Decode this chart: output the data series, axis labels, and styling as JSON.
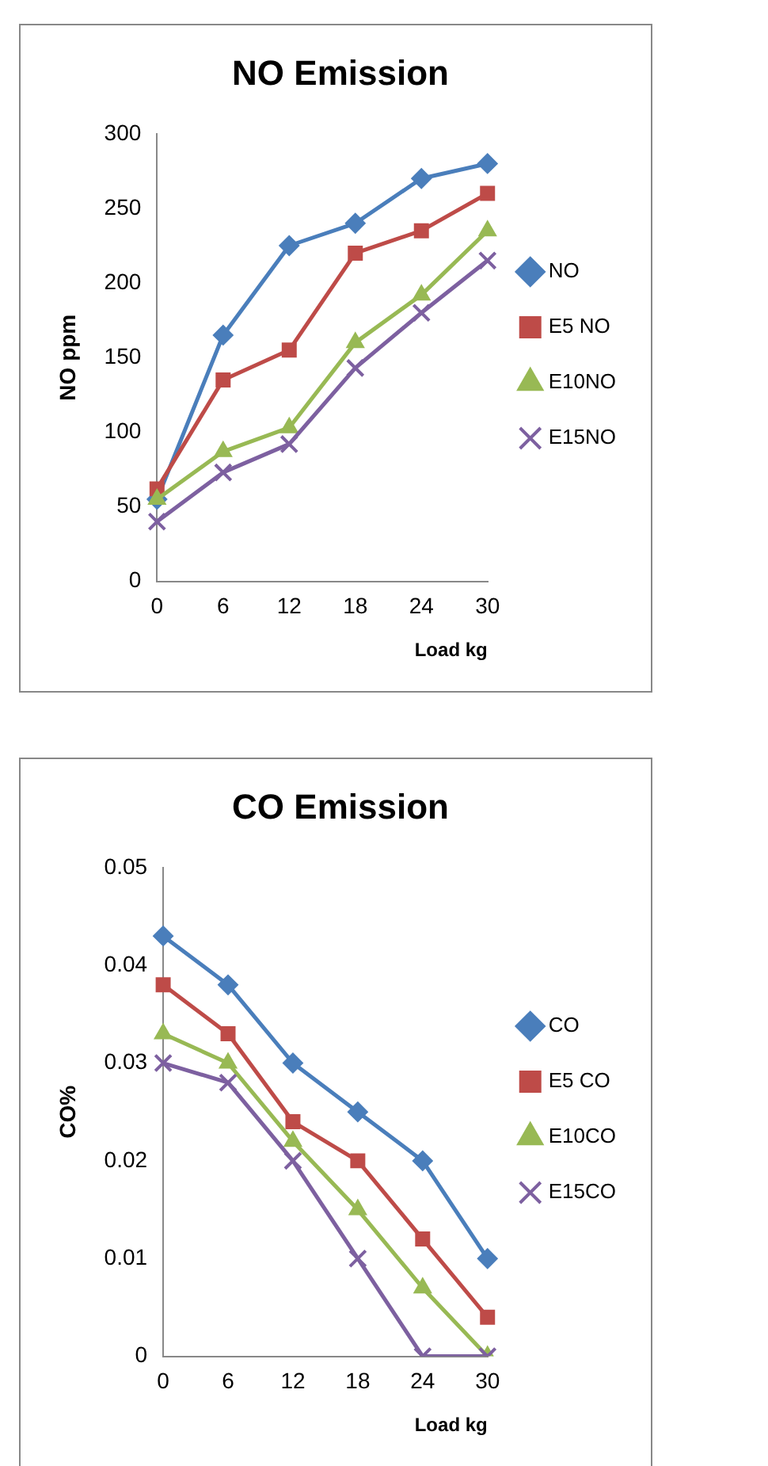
{
  "chart_data": [
    {
      "type": "line",
      "title": "NO Emission",
      "xlabel": "Load kg",
      "ylabel": "NO ppm",
      "categories": [
        "0",
        "6",
        "12",
        "18",
        "24",
        "30"
      ],
      "series": [
        {
          "name": "NO",
          "color": "#4a7ebb",
          "marker": "diamond",
          "values": [
            55,
            165,
            225,
            240,
            270,
            280
          ]
        },
        {
          "name": "E5 NO",
          "color": "#be4b48",
          "marker": "square",
          "values": [
            62,
            135,
            155,
            220,
            235,
            260
          ]
        },
        {
          "name": "E10NO",
          "color": "#98b954",
          "marker": "triangle",
          "values": [
            55,
            87,
            103,
            160,
            192,
            235
          ]
        },
        {
          "name": "E15NO",
          "color": "#7d60a0",
          "marker": "cross",
          "values": [
            40,
            73,
            92,
            143,
            180,
            215
          ]
        }
      ],
      "ylim": [
        0,
        300
      ],
      "yticks": [
        0,
        50,
        100,
        150,
        200,
        250,
        300
      ],
      "grid": false,
      "legend": "right",
      "line_style": "solid"
    },
    {
      "type": "line",
      "title": "CO Emission",
      "xlabel": "Load kg",
      "ylabel": "CO%",
      "categories": [
        "0",
        "6",
        "12",
        "18",
        "24",
        "30"
      ],
      "series": [
        {
          "name": "CO",
          "color": "#4a7ebb",
          "marker": "diamond",
          "values": [
            0.043,
            0.038,
            0.03,
            0.025,
            0.02,
            0.01
          ]
        },
        {
          "name": "E5 CO",
          "color": "#be4b48",
          "marker": "square",
          "values": [
            0.038,
            0.033,
            0.024,
            0.02,
            0.012,
            0.004
          ]
        },
        {
          "name": "E10CO",
          "color": "#98b954",
          "marker": "triangle",
          "values": [
            0.033,
            0.03,
            0.022,
            0.015,
            0.007,
            0
          ]
        },
        {
          "name": "E15CO",
          "color": "#7d60a0",
          "marker": "cross",
          "values": [
            0.03,
            0.028,
            0.02,
            0.01,
            0,
            0
          ]
        }
      ],
      "ylim": [
        0,
        0.05
      ],
      "yticks": [
        0,
        0.01,
        0.02,
        0.03,
        0.04,
        0.05
      ],
      "grid": false,
      "legend": "right",
      "line_style": "solid"
    }
  ]
}
